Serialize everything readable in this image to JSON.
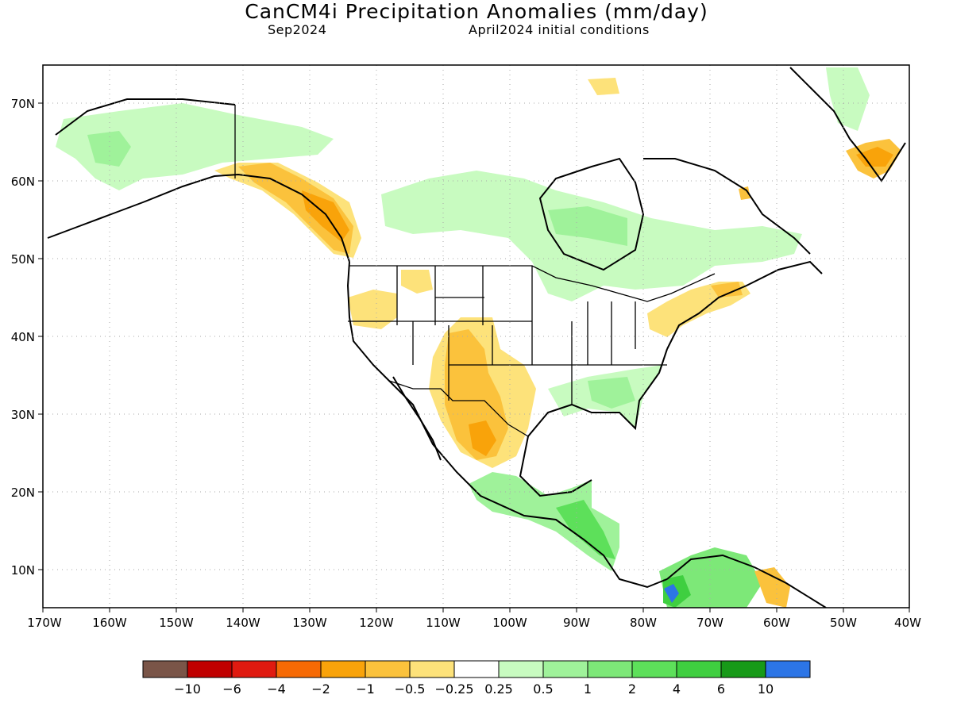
{
  "title": "CanCM4i Precipitation Anomalies (mm/day)",
  "subtitle_left": "Sep2024",
  "subtitle_right": "April2024 initial conditions",
  "lat_labels": [
    "70N",
    "60N",
    "50N",
    "40N",
    "30N",
    "20N",
    "10N"
  ],
  "lon_labels": [
    "170W",
    "160W",
    "150W",
    "140W",
    "130W",
    "120W",
    "110W",
    "100W",
    "90W",
    "80W",
    "70W",
    "60W",
    "50W",
    "40W"
  ],
  "colorbar": {
    "colors": [
      "#7a5548",
      "#c00000",
      "#e01a10",
      "#f66a05",
      "#f9a30a",
      "#fbc23c",
      "#fde27a",
      "#ffffff",
      "#c8fbc0",
      "#9ff29a",
      "#7de878",
      "#5de05a",
      "#3fcf40",
      "#179a18",
      "#2c75e6"
    ],
    "labels": [
      "-10",
      "-6",
      "-4",
      "-2",
      "-1",
      "-0.5",
      "-0.25",
      "0.25",
      "0.5",
      "1",
      "2",
      "4",
      "6",
      "10"
    ]
  }
}
